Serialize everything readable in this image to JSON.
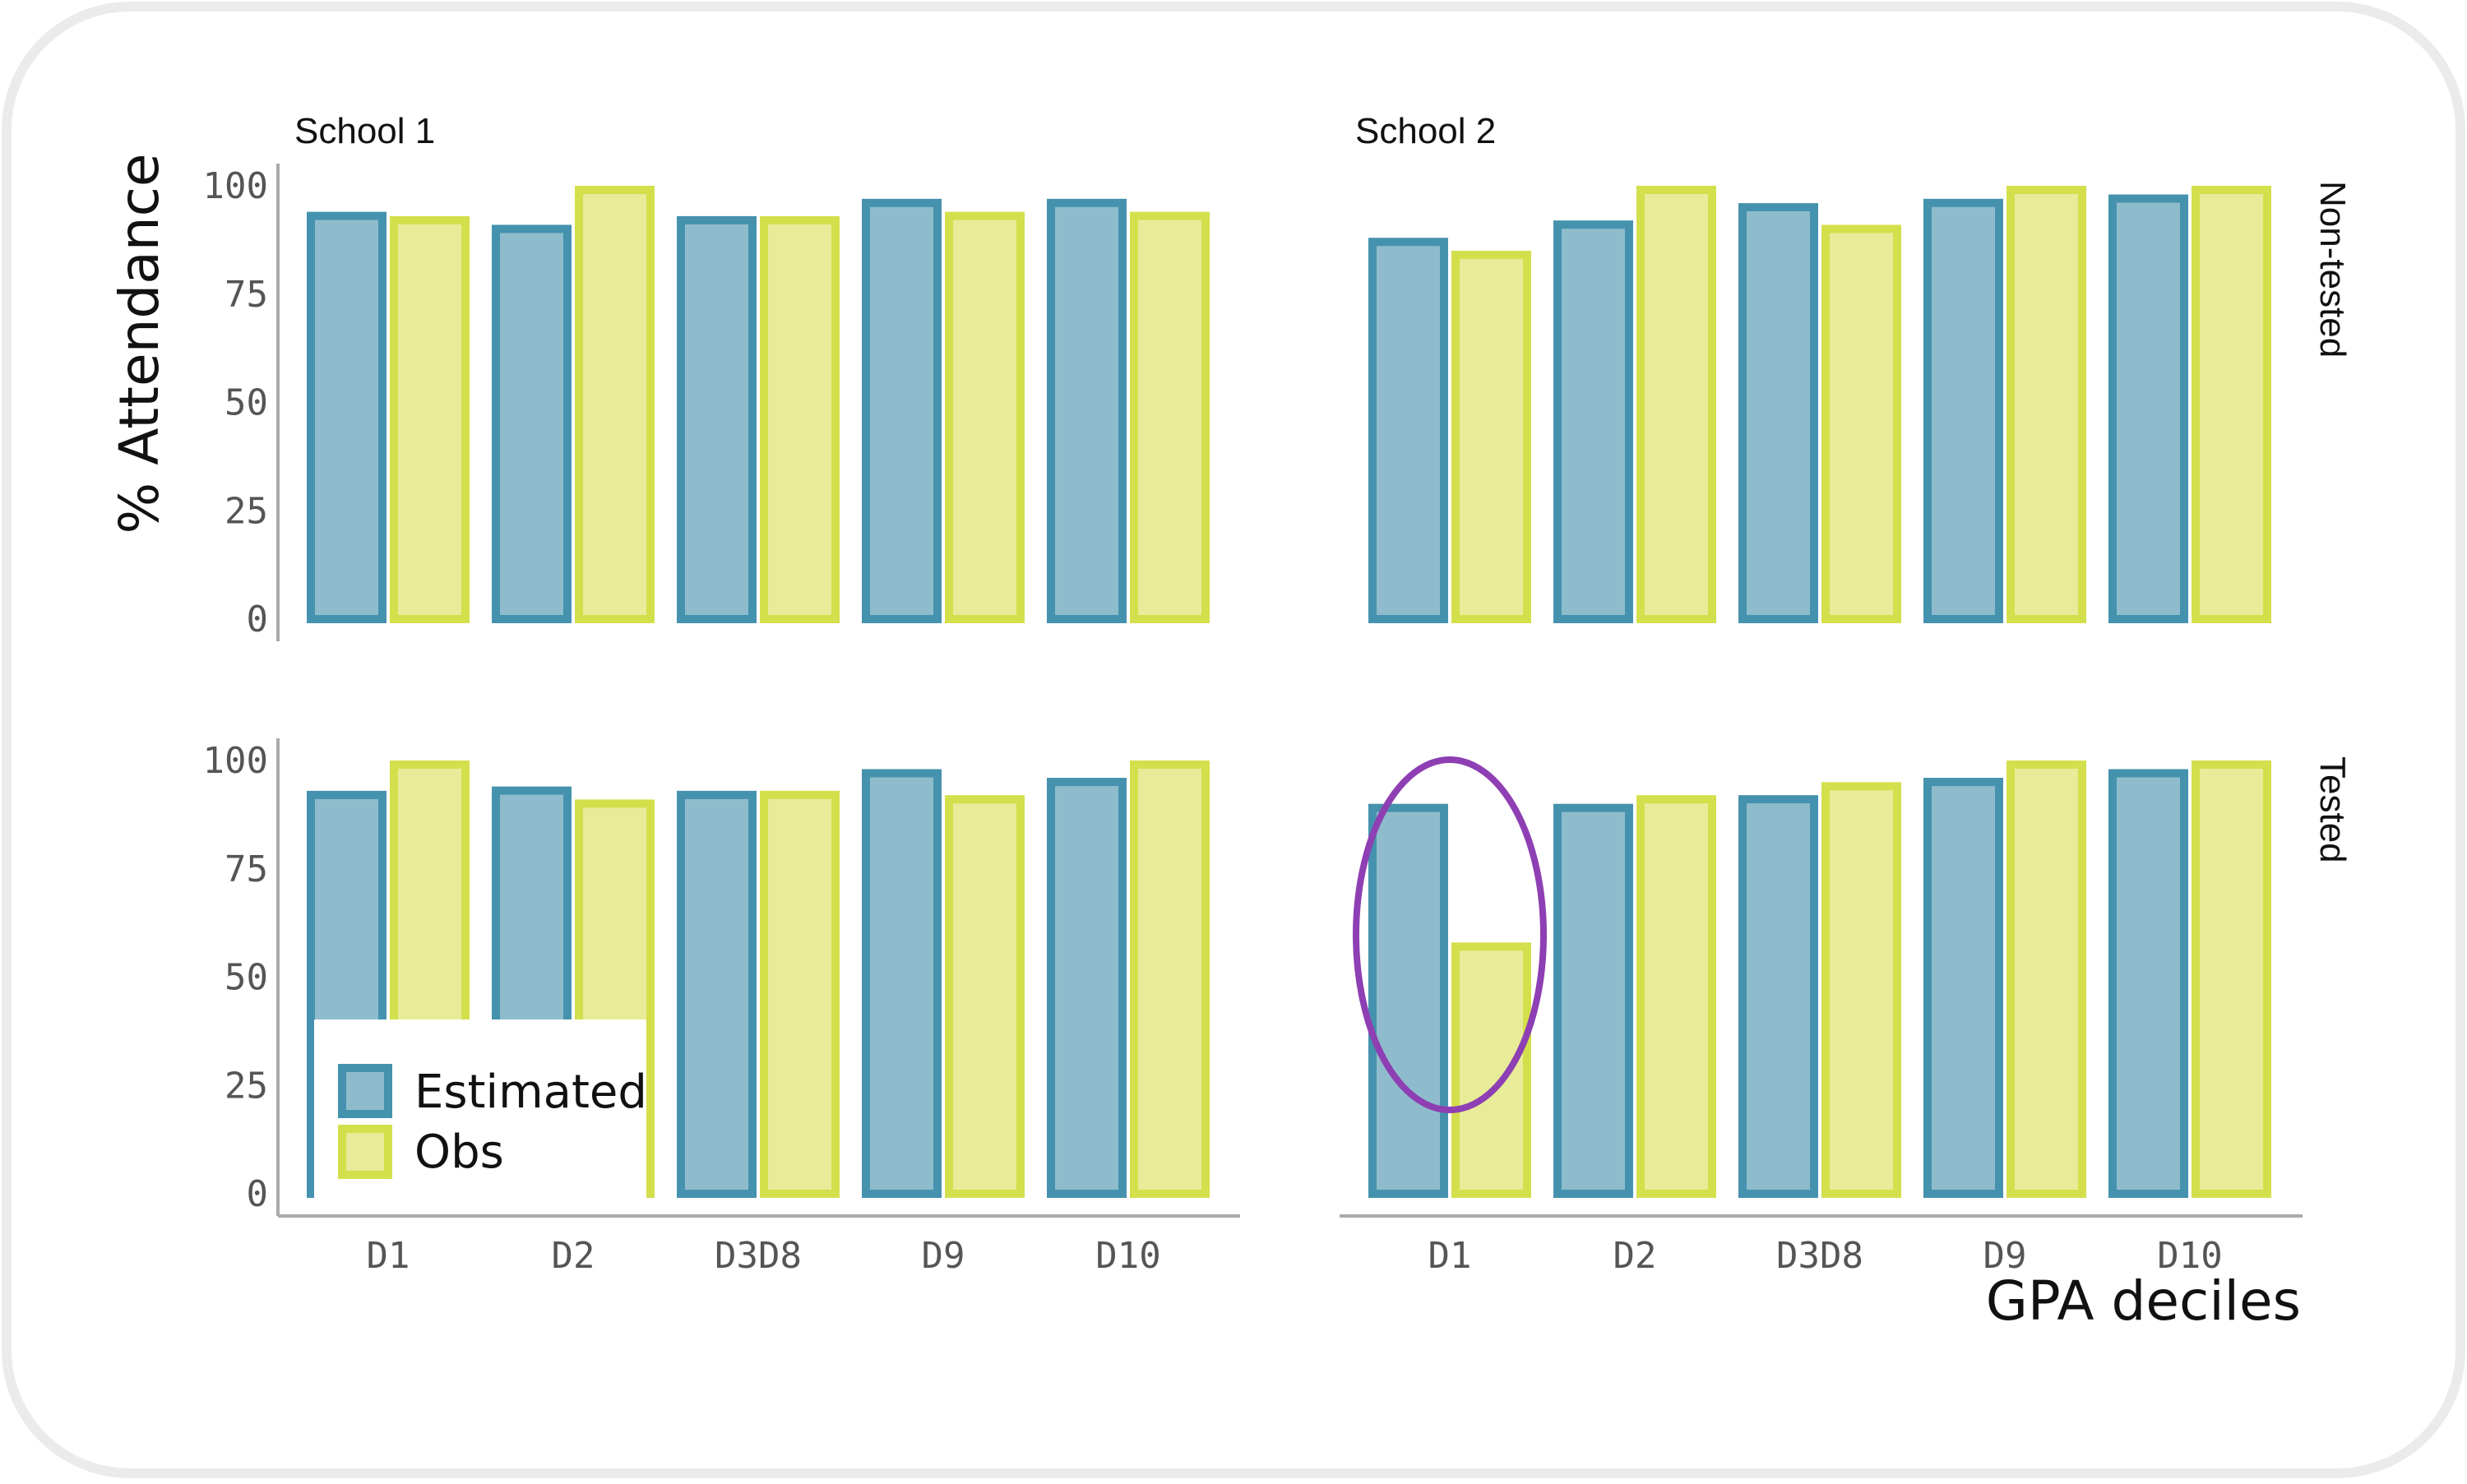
{
  "colors": {
    "estimated_fill": "#8fbccc",
    "estimated_stroke": "#4592ae",
    "obs_fill": "#e8ec98",
    "obs_stroke": "#d4df4c",
    "highlight": "#8e3fb3",
    "axis": "#aaaaaa",
    "frame": "#ebebeb"
  },
  "chart_data": {
    "type": "bar",
    "ylabel": "% Attendance",
    "xlabel": "GPA deciles",
    "ylim": [
      0,
      100
    ],
    "yticks": [
      "0",
      "25",
      "50",
      "75",
      "100"
    ],
    "categories": [
      "D1",
      "D2",
      "D3D8",
      "D9",
      "D10"
    ],
    "legend": {
      "position": "inside-bottom-left",
      "entries": [
        "Estimated",
        "Obs"
      ]
    },
    "panels": [
      {
        "column": "School 1",
        "row": "Non-tested",
        "series": [
          {
            "name": "Estimated",
            "values": [
              94,
              91,
              93,
              97,
              97
            ]
          },
          {
            "name": "Obs",
            "values": [
              93,
              100,
              93,
              94,
              94
            ]
          }
        ]
      },
      {
        "column": "School 2",
        "row": "Non-tested",
        "series": [
          {
            "name": "Estimated",
            "values": [
              88,
              92,
              96,
              97,
              98
            ]
          },
          {
            "name": "Obs",
            "values": [
              85,
              100,
              91,
              100,
              100
            ]
          }
        ]
      },
      {
        "column": "School 1",
        "row": "Tested",
        "series": [
          {
            "name": "Estimated",
            "values": [
              93,
              94,
              93,
              98,
              96
            ]
          },
          {
            "name": "Obs",
            "values": [
              100,
              91,
              93,
              92,
              100
            ]
          }
        ]
      },
      {
        "column": "School 2",
        "row": "Tested",
        "series": [
          {
            "name": "Estimated",
            "values": [
              90,
              90,
              92,
              96,
              98
            ]
          },
          {
            "name": "Obs",
            "values": [
              58,
              92,
              95,
              100,
              100
            ]
          }
        ]
      }
    ],
    "highlight": {
      "panel": "School 2 / Tested",
      "category": "D1",
      "shape": "ellipse"
    }
  }
}
